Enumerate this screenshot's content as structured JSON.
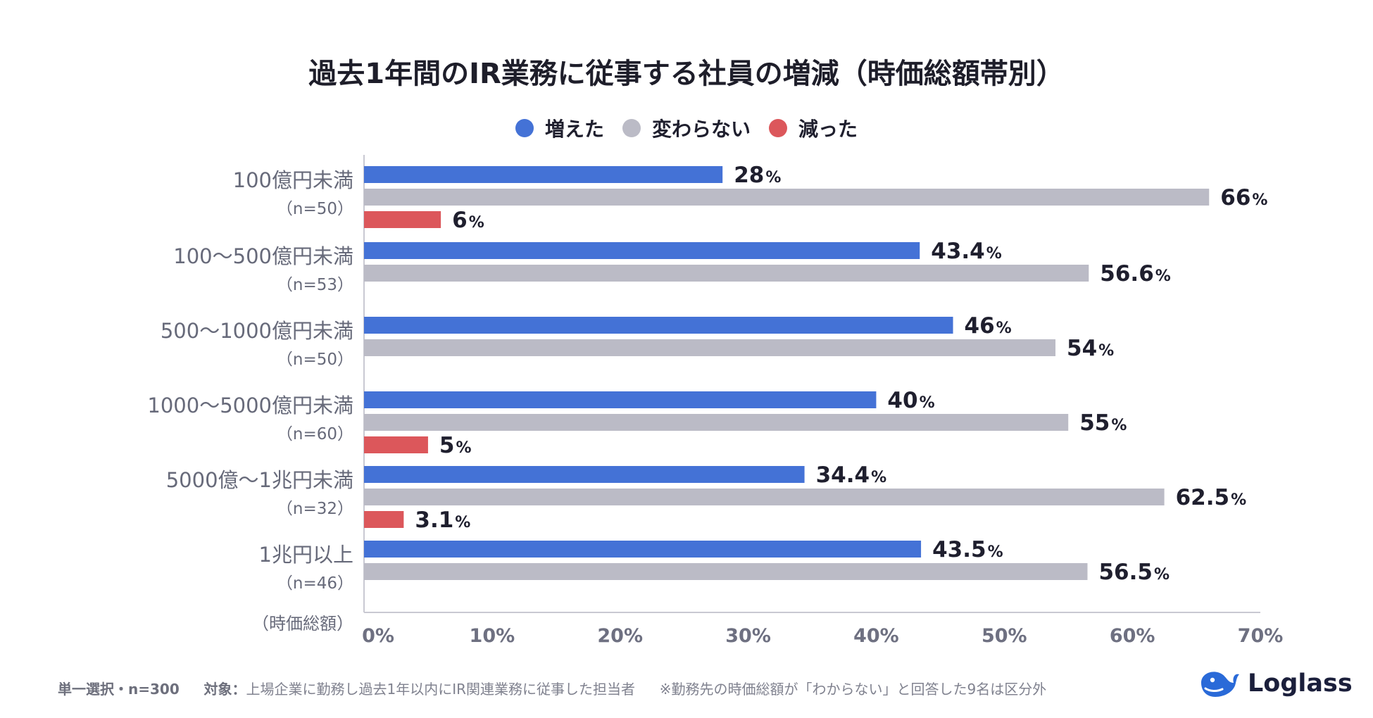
{
  "colors": {
    "increased": "#4472d6",
    "unchanged": "#bbbbc6",
    "decreased": "#dc575b",
    "axis_text": "#6e7081",
    "label_text": "#676a7a",
    "value_text": "#1f1f2e",
    "logo": "#2a6ad8"
  },
  "footer": {
    "selection": "単一選択・n=300",
    "target_label": "対象：",
    "target": "上場企業に勤務し過去1年以内にIR関連業務に従事した担当者",
    "note": "※勤務先の時価総額が「わからない」と回答した9名は区分外"
  },
  "logo": {
    "text": "Loglass",
    "icon": "whale-icon"
  },
  "chart_data": {
    "type": "bar",
    "orientation": "horizontal",
    "title": "過去1年間のIR業務に従事する社員の増減（時価総額帯別）",
    "ylabel": "（時価総額）",
    "xlim": [
      0,
      70
    ],
    "xticks": [
      0,
      10,
      20,
      30,
      40,
      50,
      60,
      70
    ],
    "tick_suffix": "%",
    "value_suffix": "%",
    "grid": false,
    "legend_position": "top-center",
    "series": [
      {
        "name": "増えた",
        "color": "#4472d6"
      },
      {
        "name": "変わらない",
        "color": "#bbbbc6"
      },
      {
        "name": "減った",
        "color": "#dc575b"
      }
    ],
    "categories": [
      {
        "label": "100億円未満",
        "n": "（n=50）",
        "values": [
          28,
          66,
          6
        ]
      },
      {
        "label": "100～500億円未満",
        "n": "（n=53）",
        "values": [
          43.4,
          56.6,
          null
        ]
      },
      {
        "label": "500～1000億円未満",
        "n": "（n=50）",
        "values": [
          46,
          54,
          null
        ]
      },
      {
        "label": "1000～5000億円未満",
        "n": "（n=60）",
        "values": [
          40,
          55,
          5
        ]
      },
      {
        "label": "5000億～1兆円未満",
        "n": "（n=32）",
        "values": [
          34.4,
          62.5,
          3.1
        ]
      },
      {
        "label": "1兆円以上",
        "n": "（n=46）",
        "values": [
          43.5,
          56.5,
          null
        ]
      }
    ]
  }
}
